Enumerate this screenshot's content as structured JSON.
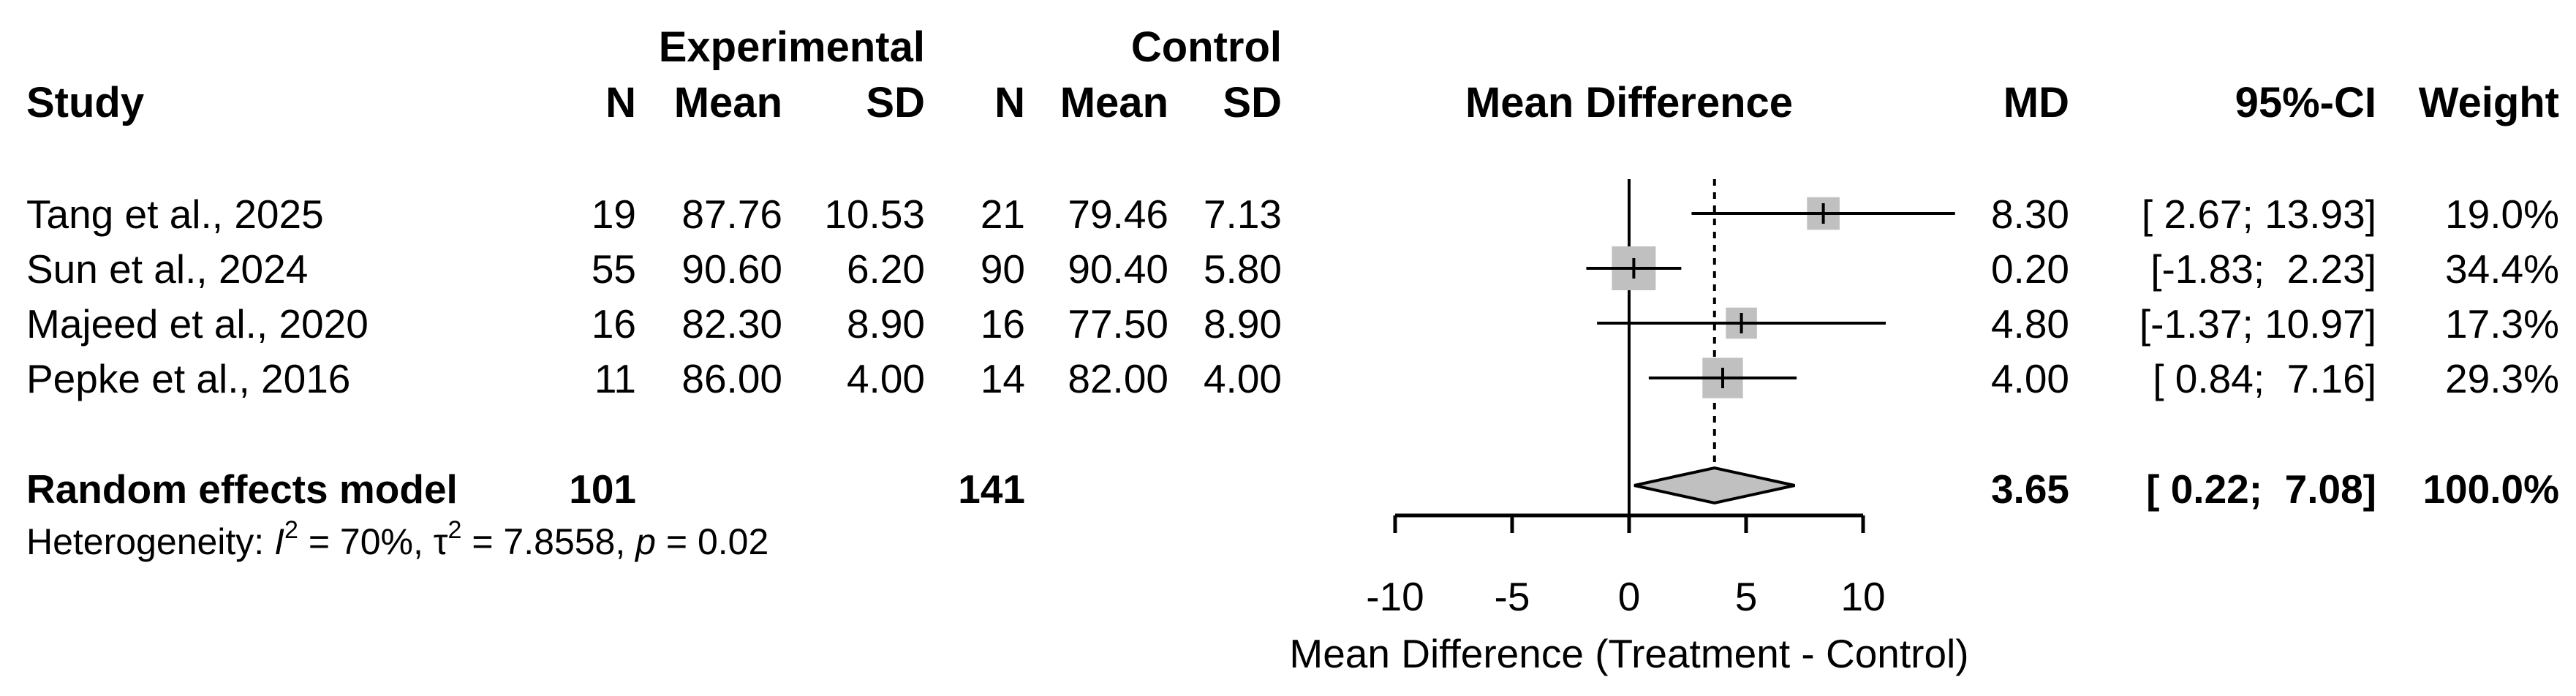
{
  "headers": {
    "study": "Study",
    "experimental": "Experimental",
    "control": "Control",
    "n": "N",
    "mean": "Mean",
    "sd": "SD",
    "mean_difference": "Mean Difference",
    "md": "MD",
    "ci": "95%-CI",
    "weight": "Weight"
  },
  "rows": [
    {
      "study": "Tang et al., 2025",
      "e_n": "19",
      "e_mean": "87.76",
      "e_sd": "10.53",
      "c_n": "21",
      "c_mean": "79.46",
      "c_sd": "7.13",
      "md": "8.30",
      "ci": "[ 2.67; 13.93]",
      "weight": "19.0%"
    },
    {
      "study": "Sun et al., 2024",
      "e_n": "55",
      "e_mean": "90.60",
      "e_sd": "6.20",
      "c_n": "90",
      "c_mean": "90.40",
      "c_sd": "5.80",
      "md": "0.20",
      "ci": "[-1.83;  2.23]",
      "weight": "34.4%"
    },
    {
      "study": "Majeed et al., 2020",
      "e_n": "16",
      "e_mean": "82.30",
      "e_sd": "8.90",
      "c_n": "16",
      "c_mean": "77.50",
      "c_sd": "8.90",
      "md": "4.80",
      "ci": "[-1.37; 10.97]",
      "weight": "17.3%"
    },
    {
      "study": "Pepke et al., 2016",
      "e_n": "11",
      "e_mean": "86.00",
      "e_sd": "4.00",
      "c_n": "14",
      "c_mean": "82.00",
      "c_sd": "4.00",
      "md": "4.00",
      "ci": "[ 0.84;  7.16]",
      "weight": "29.3%"
    }
  ],
  "model": {
    "label": "Random effects model",
    "e_n": "101",
    "c_n": "141",
    "md": "3.65",
    "ci": "[ 0.22;  7.08]",
    "weight": "100.0%"
  },
  "heterogeneity": {
    "prefix": "Heterogeneity: ",
    "i2_symbol": "I",
    "i2_value": " = 70%, ",
    "tau_symbol": "τ",
    "tau_value": " = 7.8558, ",
    "p_symbol": "p",
    "p_value": " = 0.02",
    "sup2": "2"
  },
  "chart_data": {
    "type": "forest",
    "x_axis_label": "Mean Difference (Treatment - Control)",
    "xlim": [
      -10,
      14.5
    ],
    "ticks": [
      -10,
      -5,
      0,
      5,
      10
    ],
    "null_line": 0,
    "pooled_line": 3.65,
    "studies": [
      {
        "name": "Tang et al., 2025",
        "md": 8.3,
        "lower": 2.67,
        "upper": 13.93,
        "weight": 19.0
      },
      {
        "name": "Sun et al., 2024",
        "md": 0.2,
        "lower": -1.83,
        "upper": 2.23,
        "weight": 34.4
      },
      {
        "name": "Majeed et al., 2020",
        "md": 4.8,
        "lower": -1.37,
        "upper": 10.97,
        "weight": 17.3
      },
      {
        "name": "Pepke et al., 2016",
        "md": 4.0,
        "lower": 0.84,
        "upper": 7.16,
        "weight": 29.3
      }
    ],
    "pooled": {
      "md": 3.65,
      "lower": 0.22,
      "upper": 7.08
    },
    "colors": {
      "square": "#c0c0c0",
      "diamond": "#c0c0c0",
      "line": "#000000"
    }
  }
}
